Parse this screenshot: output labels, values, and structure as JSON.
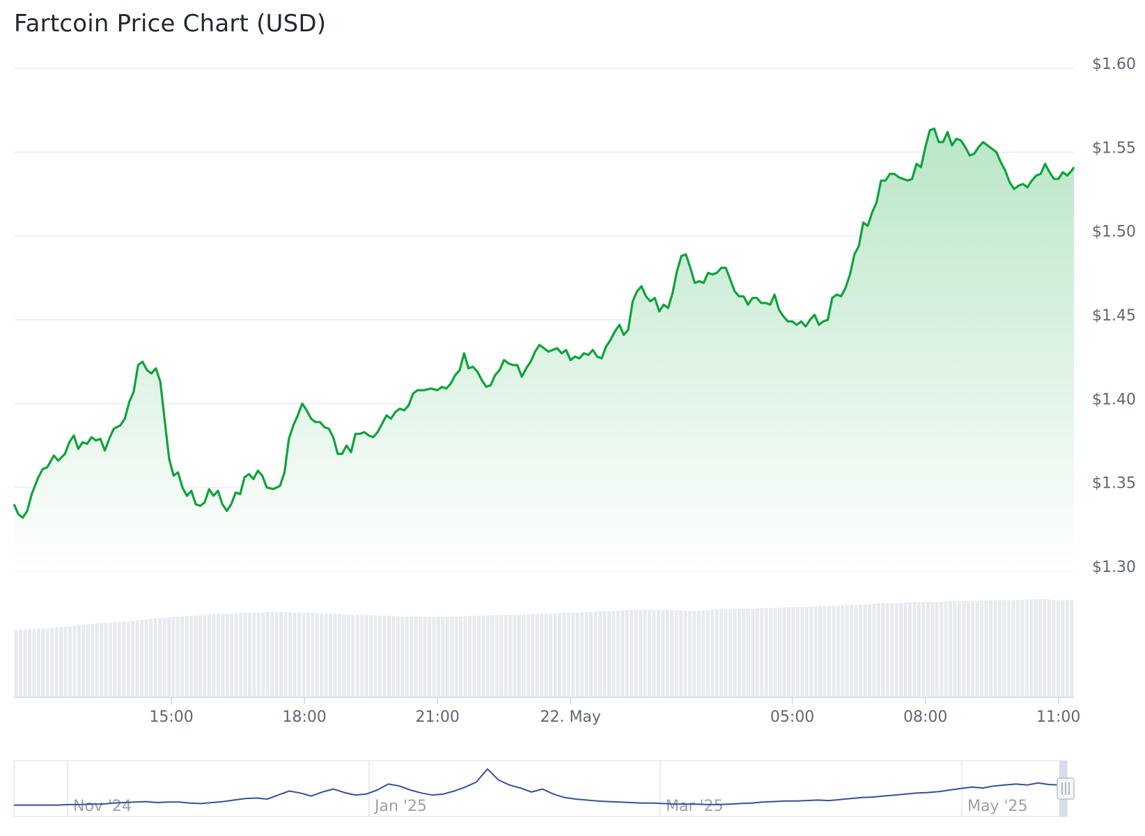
{
  "title": "Fartcoin Price Chart (USD)",
  "colors": {
    "price_line": "#0ca33a",
    "area_top": "#b9e6c6",
    "area_bottom": "#ffffff",
    "grid": "#e9ecef",
    "volume_bar": "#e7ebef",
    "navigator_line": "#34509c",
    "navigator_handle": "#d4d9e6"
  },
  "chart_data": {
    "type": "area",
    "title": "Fartcoin Price Chart (USD)",
    "y_unit": "USD",
    "ylim": [
      1.3,
      1.6
    ],
    "y_ticks": [
      "$1.60",
      "$1.55",
      "$1.50",
      "$1.45",
      "$1.40",
      "$1.35",
      "$1.30"
    ],
    "y_tick_values": [
      1.6,
      1.55,
      1.5,
      1.45,
      1.4,
      1.35,
      1.3
    ],
    "x_range_hours": [
      11.45,
      35.35
    ],
    "x_ticks": [
      {
        "label": "15:00",
        "hour": 15
      },
      {
        "label": "18:00",
        "hour": 18
      },
      {
        "label": "21:00",
        "hour": 21
      },
      {
        "label": "22. May",
        "hour": 24
      },
      {
        "label": "05:00",
        "hour": 29
      },
      {
        "label": "08:00",
        "hour": 32
      },
      {
        "label": "11:00",
        "hour": 35
      }
    ],
    "grid": true,
    "series": [
      {
        "values": [
          [
            11.45,
            1.34
          ],
          [
            11.55,
            1.334
          ],
          [
            11.65,
            1.332
          ],
          [
            11.75,
            1.336
          ],
          [
            11.85,
            1.346
          ],
          [
            12.0,
            1.356
          ],
          [
            12.1,
            1.361
          ],
          [
            12.2,
            1.362
          ],
          [
            12.35,
            1.369
          ],
          [
            12.45,
            1.366
          ],
          [
            12.6,
            1.37
          ],
          [
            12.7,
            1.377
          ],
          [
            12.8,
            1.381
          ],
          [
            12.9,
            1.373
          ],
          [
            13.0,
            1.377
          ],
          [
            13.1,
            1.376
          ],
          [
            13.2,
            1.38
          ],
          [
            13.3,
            1.378
          ],
          [
            13.4,
            1.379
          ],
          [
            13.5,
            1.372
          ],
          [
            13.6,
            1.379
          ],
          [
            13.7,
            1.385
          ],
          [
            13.85,
            1.387
          ],
          [
            13.95,
            1.391
          ],
          [
            14.05,
            1.401
          ],
          [
            14.15,
            1.407
          ],
          [
            14.25,
            1.423
          ],
          [
            14.35,
            1.425
          ],
          [
            14.45,
            1.42
          ],
          [
            14.55,
            1.418
          ],
          [
            14.65,
            1.421
          ],
          [
            14.75,
            1.413
          ],
          [
            14.85,
            1.39
          ],
          [
            14.95,
            1.367
          ],
          [
            15.05,
            1.357
          ],
          [
            15.15,
            1.359
          ],
          [
            15.25,
            1.35
          ],
          [
            15.35,
            1.345
          ],
          [
            15.45,
            1.348
          ],
          [
            15.55,
            1.34
          ],
          [
            15.65,
            1.339
          ],
          [
            15.75,
            1.341
          ],
          [
            15.85,
            1.349
          ],
          [
            15.95,
            1.345
          ],
          [
            16.05,
            1.348
          ],
          [
            16.15,
            1.34
          ],
          [
            16.25,
            1.336
          ],
          [
            16.35,
            1.34
          ],
          [
            16.45,
            1.347
          ],
          [
            16.55,
            1.346
          ],
          [
            16.65,
            1.356
          ],
          [
            16.75,
            1.358
          ],
          [
            16.85,
            1.355
          ],
          [
            16.95,
            1.36
          ],
          [
            17.05,
            1.357
          ],
          [
            17.15,
            1.35
          ],
          [
            17.3,
            1.349
          ],
          [
            17.45,
            1.351
          ],
          [
            17.55,
            1.359
          ],
          [
            17.65,
            1.379
          ],
          [
            17.75,
            1.387
          ],
          [
            17.85,
            1.393
          ],
          [
            17.95,
            1.4
          ],
          [
            18.05,
            1.396
          ],
          [
            18.15,
            1.391
          ],
          [
            18.25,
            1.389
          ],
          [
            18.35,
            1.389
          ],
          [
            18.45,
            1.386
          ],
          [
            18.55,
            1.385
          ],
          [
            18.65,
            1.38
          ],
          [
            18.75,
            1.37
          ],
          [
            18.85,
            1.37
          ],
          [
            18.95,
            1.375
          ],
          [
            19.05,
            1.371
          ],
          [
            19.15,
            1.382
          ],
          [
            19.25,
            1.382
          ],
          [
            19.35,
            1.383
          ],
          [
            19.45,
            1.381
          ],
          [
            19.55,
            1.38
          ],
          [
            19.65,
            1.383
          ],
          [
            19.75,
            1.388
          ],
          [
            19.85,
            1.393
          ],
          [
            19.95,
            1.391
          ],
          [
            20.05,
            1.395
          ],
          [
            20.15,
            1.397
          ],
          [
            20.25,
            1.396
          ],
          [
            20.35,
            1.399
          ],
          [
            20.45,
            1.406
          ],
          [
            20.55,
            1.408
          ],
          [
            20.7,
            1.408
          ],
          [
            20.85,
            1.409
          ],
          [
            21.0,
            1.408
          ],
          [
            21.1,
            1.41
          ],
          [
            21.2,
            1.409
          ],
          [
            21.3,
            1.412
          ],
          [
            21.4,
            1.417
          ],
          [
            21.5,
            1.42
          ],
          [
            21.6,
            1.43
          ],
          [
            21.7,
            1.421
          ],
          [
            21.8,
            1.422
          ],
          [
            21.9,
            1.419
          ],
          [
            22.0,
            1.414
          ],
          [
            22.1,
            1.41
          ],
          [
            22.2,
            1.411
          ],
          [
            22.3,
            1.417
          ],
          [
            22.4,
            1.42
          ],
          [
            22.5,
            1.426
          ],
          [
            22.6,
            1.424
          ],
          [
            22.7,
            1.423
          ],
          [
            22.8,
            1.423
          ],
          [
            22.9,
            1.416
          ],
          [
            23.0,
            1.421
          ],
          [
            23.1,
            1.425
          ],
          [
            23.2,
            1.431
          ],
          [
            23.3,
            1.435
          ],
          [
            23.4,
            1.433
          ],
          [
            23.5,
            1.431
          ],
          [
            23.6,
            1.432
          ],
          [
            23.7,
            1.433
          ],
          [
            23.8,
            1.43
          ],
          [
            23.9,
            1.432
          ],
          [
            24.0,
            1.426
          ],
          [
            24.1,
            1.428
          ],
          [
            24.2,
            1.427
          ],
          [
            24.3,
            1.43
          ],
          [
            24.4,
            1.429
          ],
          [
            24.5,
            1.432
          ],
          [
            24.6,
            1.428
          ],
          [
            24.7,
            1.427
          ],
          [
            24.8,
            1.434
          ],
          [
            24.9,
            1.438
          ],
          [
            25.0,
            1.443
          ],
          [
            25.1,
            1.447
          ],
          [
            25.2,
            1.441
          ],
          [
            25.3,
            1.444
          ],
          [
            25.4,
            1.461
          ],
          [
            25.5,
            1.467
          ],
          [
            25.6,
            1.47
          ],
          [
            25.7,
            1.464
          ],
          [
            25.8,
            1.461
          ],
          [
            25.9,
            1.463
          ],
          [
            26.0,
            1.455
          ],
          [
            26.1,
            1.459
          ],
          [
            26.2,
            1.457
          ],
          [
            26.3,
            1.466
          ],
          [
            26.4,
            1.479
          ],
          [
            26.5,
            1.488
          ],
          [
            26.6,
            1.489
          ],
          [
            26.7,
            1.481
          ],
          [
            26.8,
            1.472
          ],
          [
            26.9,
            1.473
          ],
          [
            27.0,
            1.472
          ],
          [
            27.1,
            1.478
          ],
          [
            27.2,
            1.477
          ],
          [
            27.3,
            1.478
          ],
          [
            27.4,
            1.481
          ],
          [
            27.5,
            1.481
          ],
          [
            27.6,
            1.474
          ],
          [
            27.7,
            1.467
          ],
          [
            27.8,
            1.464
          ],
          [
            27.9,
            1.464
          ],
          [
            28.0,
            1.459
          ],
          [
            28.1,
            1.463
          ],
          [
            28.2,
            1.463
          ],
          [
            28.3,
            1.46
          ],
          [
            28.4,
            1.46
          ],
          [
            28.5,
            1.459
          ],
          [
            28.6,
            1.465
          ],
          [
            28.7,
            1.456
          ],
          [
            28.8,
            1.452
          ],
          [
            28.9,
            1.449
          ],
          [
            29.0,
            1.449
          ],
          [
            29.1,
            1.447
          ],
          [
            29.2,
            1.449
          ],
          [
            29.3,
            1.446
          ],
          [
            29.4,
            1.45
          ],
          [
            29.5,
            1.453
          ],
          [
            29.6,
            1.447
          ],
          [
            29.7,
            1.449
          ],
          [
            29.8,
            1.45
          ],
          [
            29.9,
            1.463
          ],
          [
            30.0,
            1.465
          ],
          [
            30.1,
            1.464
          ],
          [
            30.2,
            1.469
          ],
          [
            30.3,
            1.477
          ],
          [
            30.4,
            1.489
          ],
          [
            30.5,
            1.494
          ],
          [
            30.6,
            1.508
          ],
          [
            30.7,
            1.506
          ],
          [
            30.8,
            1.514
          ],
          [
            30.9,
            1.52
          ],
          [
            31.0,
            1.533
          ],
          [
            31.1,
            1.533
          ],
          [
            31.2,
            1.537
          ],
          [
            31.3,
            1.537
          ],
          [
            31.4,
            1.535
          ],
          [
            31.5,
            1.534
          ],
          [
            31.6,
            1.533
          ],
          [
            31.7,
            1.534
          ],
          [
            31.8,
            1.543
          ],
          [
            31.9,
            1.541
          ],
          [
            32.0,
            1.553
          ],
          [
            32.1,
            1.563
          ],
          [
            32.2,
            1.564
          ],
          [
            32.3,
            1.556
          ],
          [
            32.4,
            1.556
          ],
          [
            32.5,
            1.562
          ],
          [
            32.6,
            1.554
          ],
          [
            32.7,
            1.558
          ],
          [
            32.8,
            1.557
          ],
          [
            32.9,
            1.553
          ],
          [
            33.0,
            1.548
          ],
          [
            33.1,
            1.549
          ],
          [
            33.2,
            1.553
          ],
          [
            33.3,
            1.556
          ],
          [
            33.4,
            1.554
          ],
          [
            33.5,
            1.552
          ],
          [
            33.6,
            1.55
          ],
          [
            33.7,
            1.544
          ],
          [
            33.8,
            1.539
          ],
          [
            33.9,
            1.532
          ],
          [
            34.0,
            1.528
          ],
          [
            34.1,
            1.53
          ],
          [
            34.2,
            1.531
          ],
          [
            34.3,
            1.529
          ],
          [
            34.4,
            1.533
          ],
          [
            34.5,
            1.536
          ],
          [
            34.6,
            1.537
          ],
          [
            34.7,
            1.543
          ],
          [
            34.8,
            1.538
          ],
          [
            34.9,
            1.534
          ],
          [
            35.0,
            1.534
          ],
          [
            35.1,
            1.538
          ],
          [
            35.2,
            1.536
          ],
          [
            35.3,
            1.539
          ],
          [
            35.35,
            1.541
          ]
        ]
      }
    ],
    "volume_levels": [
      0.68,
      0.69,
      0.7,
      0.71,
      0.72,
      0.74,
      0.75,
      0.76,
      0.77,
      0.78,
      0.8,
      0.81,
      0.82,
      0.83,
      0.84,
      0.85,
      0.85,
      0.86,
      0.86,
      0.87,
      0.87,
      0.86,
      0.86,
      0.85,
      0.85,
      0.84,
      0.84,
      0.83,
      0.83,
      0.82,
      0.82,
      0.82,
      0.82,
      0.82,
      0.83,
      0.83,
      0.84,
      0.84,
      0.84,
      0.85,
      0.85,
      0.86,
      0.86,
      0.87,
      0.88,
      0.88,
      0.89,
      0.89,
      0.89,
      0.89,
      0.88,
      0.88,
      0.89,
      0.9,
      0.9,
      0.9,
      0.91,
      0.91,
      0.92,
      0.92,
      0.93,
      0.93,
      0.94,
      0.94,
      0.95,
      0.96,
      0.96,
      0.97,
      0.97,
      0.97,
      0.98,
      0.98,
      0.98,
      0.99,
      0.99,
      0.99,
      1.0,
      1.0,
      0.99,
      0.99
    ],
    "navigator": {
      "x_ticks": [
        "Nov '24",
        "Jan '25",
        "Mar '25",
        "May '25"
      ],
      "values": [
        0.2,
        0.2,
        0.2,
        0.2,
        0.2,
        0.21,
        0.21,
        0.22,
        0.22,
        0.24,
        0.25,
        0.26,
        0.27,
        0.25,
        0.26,
        0.26,
        0.24,
        0.23,
        0.25,
        0.27,
        0.3,
        0.33,
        0.34,
        0.32,
        0.4,
        0.48,
        0.44,
        0.38,
        0.46,
        0.52,
        0.45,
        0.4,
        0.42,
        0.5,
        0.62,
        0.58,
        0.5,
        0.44,
        0.4,
        0.42,
        0.48,
        0.56,
        0.66,
        0.92,
        0.7,
        0.6,
        0.54,
        0.46,
        0.52,
        0.42,
        0.35,
        0.32,
        0.3,
        0.28,
        0.27,
        0.26,
        0.25,
        0.24,
        0.24,
        0.23,
        0.22,
        0.22,
        0.22,
        0.21,
        0.21,
        0.22,
        0.23,
        0.24,
        0.26,
        0.27,
        0.28,
        0.28,
        0.29,
        0.3,
        0.29,
        0.31,
        0.33,
        0.35,
        0.36,
        0.38,
        0.4,
        0.42,
        0.44,
        0.45,
        0.47,
        0.5,
        0.53,
        0.56,
        0.54,
        0.58,
        0.6,
        0.62,
        0.6,
        0.64,
        0.61,
        0.6
      ]
    }
  }
}
